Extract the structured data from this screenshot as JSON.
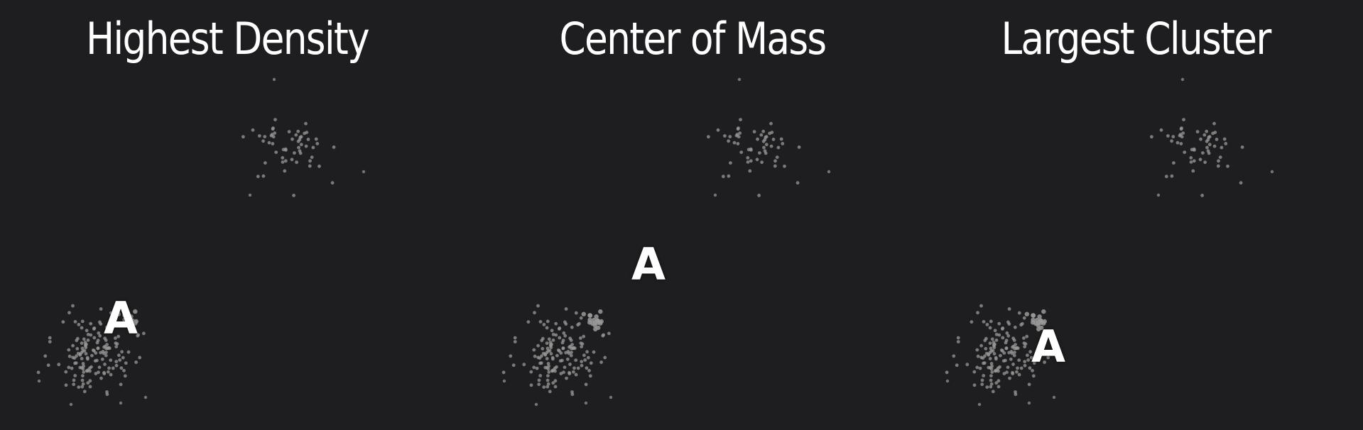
{
  "panels": [
    {
      "title": "Highest Density",
      "marker": "A",
      "seed": 11
    },
    {
      "title": "Center of Mass",
      "marker": "A",
      "seed": 11
    },
    {
      "title": "Largest Cluster",
      "marker": "A",
      "seed": 11
    }
  ],
  "colors": {
    "background": "#1e1e20",
    "point": "#9a9a9a",
    "text": "#ffffff"
  }
}
